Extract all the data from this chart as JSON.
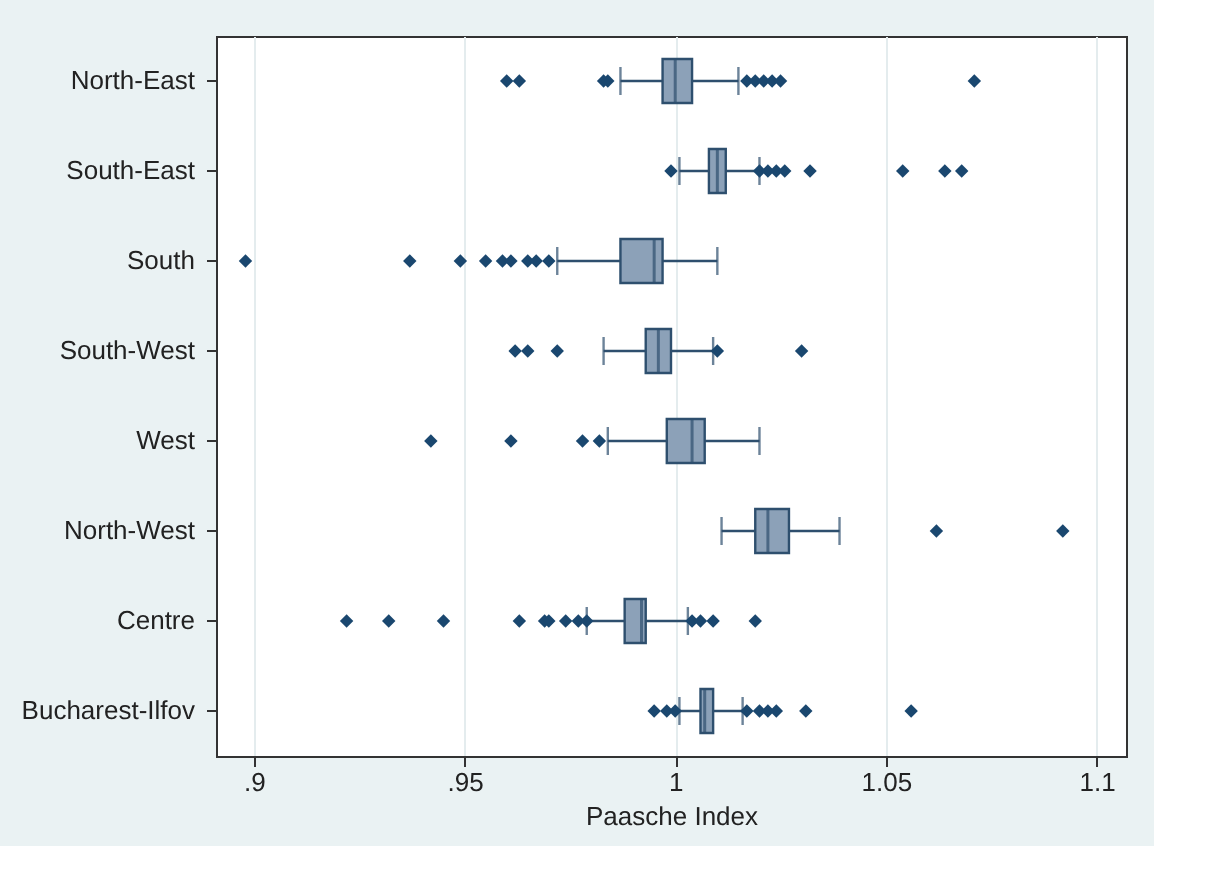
{
  "chart_data": {
    "type": "box",
    "orientation": "horizontal",
    "xlabel": "Paasche Index",
    "categories": [
      "North-East",
      "South-East",
      "South",
      "South-West",
      "West",
      "North-West",
      "Centre",
      "Bucharest-Ilfov"
    ],
    "xlim": [
      0.891,
      1.107
    ],
    "xticks": [
      {
        "value": 0.9,
        "label": ".9"
      },
      {
        "value": 0.95,
        "label": ".95"
      },
      1,
      1.05,
      1.1
    ],
    "grid": "x",
    "series": [
      {
        "color": "#8ca1b8",
        "boxes": [
          {
            "low": 0.987,
            "q1": 0.997,
            "median": 1.0,
            "q3": 1.004,
            "high": 1.015,
            "outliers": [
              0.96,
              0.963,
              0.983,
              0.984,
              1.017,
              1.019,
              1.021,
              1.023,
              1.025,
              1.071
            ]
          },
          {
            "low": 1.001,
            "q1": 1.008,
            "median": 1.01,
            "q3": 1.012,
            "high": 1.02,
            "outliers": [
              0.999,
              1.02,
              1.022,
              1.024,
              1.026,
              1.032,
              1.054,
              1.064,
              1.068
            ]
          },
          {
            "low": 0.972,
            "q1": 0.987,
            "median": 0.995,
            "q3": 0.997,
            "high": 1.01,
            "outliers": [
              0.898,
              0.937,
              0.949,
              0.955,
              0.959,
              0.961,
              0.965,
              0.967,
              0.97
            ]
          },
          {
            "low": 0.983,
            "q1": 0.993,
            "median": 0.996,
            "q3": 0.999,
            "high": 1.009,
            "outliers": [
              0.962,
              0.965,
              0.972,
              1.01,
              1.03
            ]
          },
          {
            "low": 0.984,
            "q1": 0.998,
            "median": 1.004,
            "q3": 1.007,
            "high": 1.02,
            "outliers": [
              0.942,
              0.961,
              0.978,
              0.982
            ]
          },
          {
            "low": 1.011,
            "q1": 1.019,
            "median": 1.022,
            "q3": 1.027,
            "high": 1.039,
            "outliers": [
              1.062,
              1.092
            ]
          },
          {
            "low": 0.979,
            "q1": 0.988,
            "median": 0.992,
            "q3": 0.993,
            "high": 1.003,
            "outliers": [
              0.922,
              0.932,
              0.945,
              0.963,
              0.969,
              0.97,
              0.974,
              0.977,
              0.979,
              1.004,
              1.006,
              1.009,
              1.019
            ]
          },
          {
            "low": 1.001,
            "q1": 1.006,
            "median": 1.007,
            "q3": 1.009,
            "high": 1.016,
            "outliers": [
              0.995,
              0.998,
              1.0,
              1.017,
              1.02,
              1.022,
              1.024,
              1.031,
              1.056
            ]
          }
        ]
      }
    ]
  }
}
